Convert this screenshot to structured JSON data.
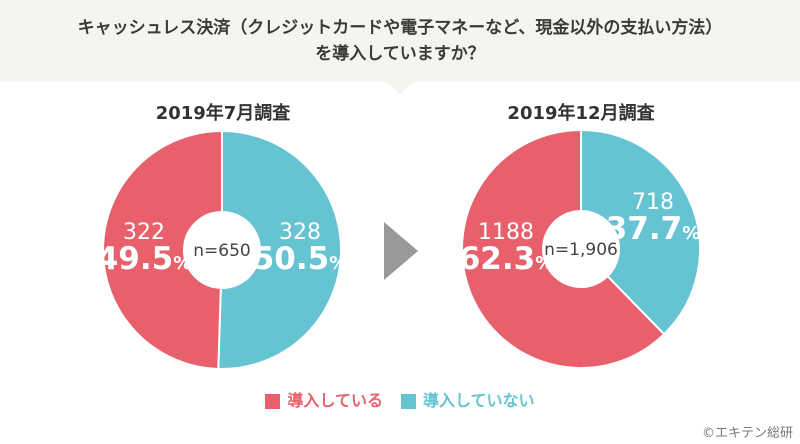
{
  "header": {
    "title_line1": "キャッシュレス決済（クレジットカードや電子マネーなど、現金以外の支払い方法）",
    "title_line2": "を導入していますか？"
  },
  "symbols": {
    "percent_sign": "%"
  },
  "colors": {
    "introduced": "#e8606b",
    "not_introduced": "#66c3d2",
    "header_bg": "#f6f4ef",
    "arrow": "#999999"
  },
  "legend": [
    {
      "key": "introduced",
      "label": "導入している",
      "color": "#e8606b"
    },
    {
      "key": "not_introduced",
      "label": "導入していない",
      "color": "#66c3d2"
    }
  ],
  "footer": {
    "credit": "©エキテン総研"
  },
  "chart_data": [
    {
      "type": "pie",
      "variant": "donut",
      "title": "2019年7月調査",
      "sample_label": "n=650",
      "sample_size": 650,
      "start_angle_deg": 0,
      "direction": "clockwise",
      "segments": [
        {
          "key": "not_introduced",
          "label": "導入していない",
          "count": 328,
          "pct": 50.5,
          "color": "#66c3d2"
        },
        {
          "key": "introduced",
          "label": "導入している",
          "count": 322,
          "pct": 49.5,
          "color": "#e8606b"
        }
      ]
    },
    {
      "type": "pie",
      "variant": "donut",
      "title": "2019年12月調査",
      "sample_label": "n=1,906",
      "sample_size": 1906,
      "start_angle_deg": 0,
      "direction": "clockwise",
      "segments": [
        {
          "key": "not_introduced",
          "label": "導入していない",
          "count": 718,
          "pct": 37.7,
          "color": "#66c3d2"
        },
        {
          "key": "introduced",
          "label": "導入している",
          "count": 1188,
          "pct": 62.3,
          "color": "#e8606b"
        }
      ]
    }
  ]
}
